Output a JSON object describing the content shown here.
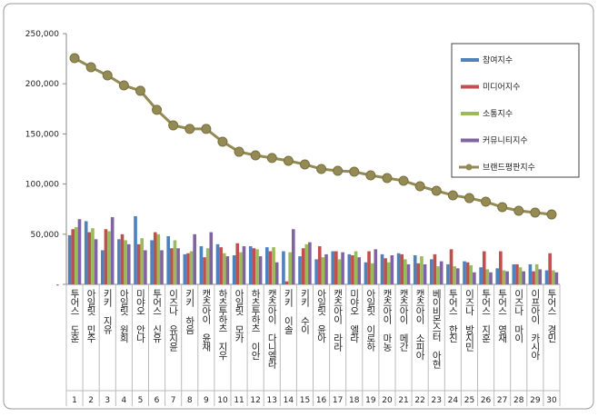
{
  "chart_data": {
    "type": "bar",
    "categories": [
      "투어스 도훈",
      "아일릿 민주",
      "키키 지유",
      "아일릿 원희",
      "미야오 안나",
      "투어스 신유",
      "이즈나 유지윤",
      "키키 하음",
      "캣츠아이 윤채",
      "하츠투하츠 지우",
      "아일릿 모카",
      "하츠투하츠 이안",
      "캣츠아이 다니엘라",
      "키키 이솔",
      "키키 수이",
      "아일릿 윤아",
      "캣츠아이 라라",
      "미야오 엘라",
      "아일릿 이로하",
      "캣츠아이 마농",
      "캣츠아이 메간",
      "캣츠아이 소피아",
      "베이비몬스터 아현",
      "투어스 한진",
      "이즈나 방지민",
      "투어스 지훈",
      "투어스 영재",
      "이즈나 마이",
      "이프아이 카시아",
      "투어스 경민"
    ],
    "ranks": [
      1,
      2,
      3,
      4,
      5,
      6,
      7,
      8,
      9,
      10,
      11,
      12,
      13,
      14,
      15,
      16,
      17,
      18,
      19,
      20,
      21,
      22,
      23,
      24,
      25,
      26,
      27,
      28,
      29,
      30
    ],
    "series": [
      {
        "name": "참여지수",
        "color": "#4f81bd",
        "values": [
          49000,
          63000,
          34000,
          45000,
          68000,
          44000,
          48000,
          30000,
          38000,
          40000,
          29000,
          38000,
          37000,
          33000,
          28000,
          25000,
          33000,
          30000,
          22000,
          30000,
          31000,
          29000,
          25000,
          20000,
          23000,
          17000,
          16000,
          20000,
          20000,
          14000
        ]
      },
      {
        "name": "미디어지수",
        "color": "#c0504d",
        "values": [
          55000,
          52000,
          55000,
          50000,
          40000,
          52000,
          36000,
          31000,
          27000,
          37000,
          41000,
          36000,
          33000,
          3000,
          36000,
          38000,
          33000,
          29000,
          33000,
          26000,
          30000,
          21000,
          30000,
          35000,
          22000,
          33000,
          33000,
          20000,
          13000,
          31000
        ]
      },
      {
        "name": "소통지수",
        "color": "#9bbb59",
        "values": [
          57000,
          56000,
          53000,
          44000,
          46000,
          50000,
          44000,
          33000,
          36000,
          31000,
          32000,
          35000,
          37000,
          32000,
          40000,
          27000,
          25000,
          33000,
          21000,
          22000,
          25000,
          28000,
          18000,
          18000,
          19000,
          15000,
          14000,
          17000,
          20000,
          14000
        ]
      },
      {
        "name": "커뮤니티지수",
        "color": "#8064a2",
        "values": [
          65000,
          45000,
          67000,
          40000,
          34000,
          34000,
          36000,
          50000,
          52000,
          28000,
          38000,
          28000,
          22000,
          55000,
          42000,
          30000,
          32000,
          27000,
          35000,
          29000,
          20000,
          20000,
          23000,
          16000,
          12000,
          12000,
          13000,
          13000,
          15000,
          12000
        ]
      },
      {
        "name": "브랜드평판지수",
        "color": "#948a54",
        "type": "line",
        "values": [
          225500,
          216500,
          208300,
          198400,
          193000,
          174000,
          158500,
          155000,
          155000,
          142200,
          132200,
          128600,
          126000,
          123200,
          119600,
          115000,
          113200,
          112300,
          108700,
          106000,
          103300,
          97800,
          93300,
          88800,
          86000,
          82400,
          77000,
          73400,
          71600,
          69700
        ]
      }
    ],
    "ylim": [
      0,
      250000
    ],
    "yticks": [
      {
        "value": 0,
        "label": "-"
      },
      {
        "value": 50000,
        "label": "50,000"
      },
      {
        "value": 100000,
        "label": "100,000"
      },
      {
        "value": 150000,
        "label": "150,000"
      },
      {
        "value": 200000,
        "label": "200,000"
      },
      {
        "value": 250000,
        "label": "250,000"
      }
    ],
    "grid": false
  }
}
